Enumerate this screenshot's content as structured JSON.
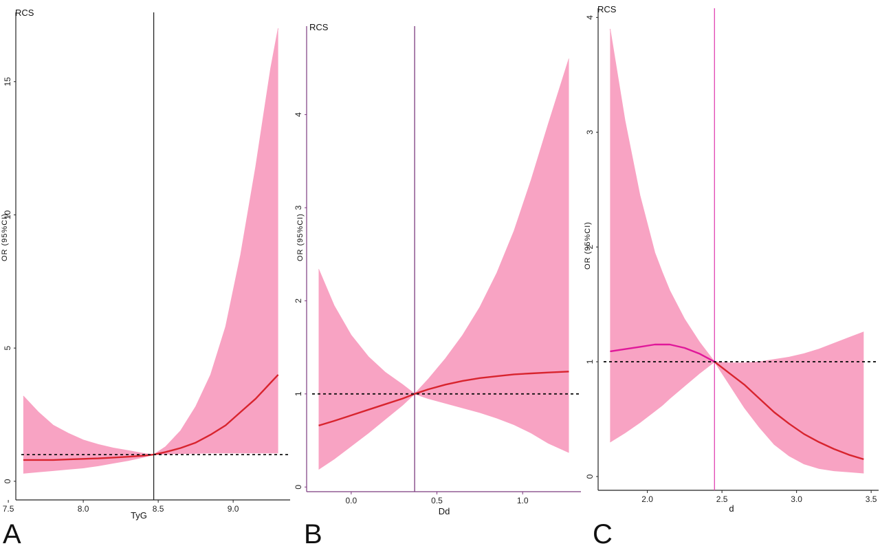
{
  "chart_data": [
    {
      "type": "line",
      "panel_label": "A",
      "corner_label": "RCS",
      "xlabel": "TyG",
      "ylabel": "OR (95%CI)",
      "xlim": [
        7.55,
        9.38
      ],
      "ylim": [
        -0.7,
        17.6
      ],
      "xticks": [
        7.5,
        8.0,
        8.5,
        9.0
      ],
      "yticks": [
        0,
        5,
        10,
        15
      ],
      "reference_x": 8.47,
      "reference_y": 1,
      "axis_color": "#222222",
      "vline_color": "#222222",
      "band_color": "#f8a3c3",
      "line_colors": [
        "#d8242e",
        "#d8242e"
      ],
      "series": [
        {
          "name": "OR",
          "x": [
            7.6,
            7.7,
            7.8,
            7.9,
            8.0,
            8.1,
            8.2,
            8.3,
            8.4,
            8.47,
            8.55,
            8.65,
            8.75,
            8.85,
            8.95,
            9.05,
            9.15,
            9.25,
            9.3
          ],
          "values": [
            0.8,
            0.8,
            0.8,
            0.82,
            0.84,
            0.86,
            0.89,
            0.92,
            0.96,
            1.0,
            1.1,
            1.25,
            1.45,
            1.75,
            2.1,
            2.6,
            3.1,
            3.7,
            4.0
          ]
        },
        {
          "name": "Lower 95% CI",
          "x": [
            7.6,
            7.7,
            7.8,
            7.9,
            8.0,
            8.1,
            8.2,
            8.3,
            8.4,
            8.47,
            8.55,
            8.65,
            8.75,
            8.85,
            8.95,
            9.05,
            9.15,
            9.25,
            9.3
          ],
          "values": [
            0.3,
            0.35,
            0.4,
            0.45,
            0.5,
            0.58,
            0.68,
            0.78,
            0.9,
            1.0,
            1.02,
            1.04,
            1.05,
            1.06,
            1.06,
            1.06,
            1.06,
            1.06,
            1.06
          ]
        },
        {
          "name": "Upper 95% CI",
          "x": [
            7.6,
            7.7,
            7.8,
            7.9,
            8.0,
            8.1,
            8.2,
            8.3,
            8.4,
            8.47,
            8.55,
            8.65,
            8.75,
            8.85,
            8.95,
            9.05,
            9.15,
            9.25,
            9.3
          ],
          "values": [
            3.2,
            2.6,
            2.1,
            1.8,
            1.55,
            1.38,
            1.25,
            1.15,
            1.05,
            1.0,
            1.3,
            1.9,
            2.8,
            4.0,
            5.8,
            8.5,
            11.8,
            15.5,
            17.0
          ]
        }
      ]
    },
    {
      "type": "line",
      "panel_label": "B",
      "corner_label": "RCS",
      "xlabel": "Dd",
      "ylabel": "OR (95%CI)",
      "xlim": [
        -0.26,
        1.34
      ],
      "ylim": [
        -0.05,
        4.95
      ],
      "xticks": [
        0.0,
        0.5,
        1.0
      ],
      "yticks": [
        0,
        1,
        2,
        3,
        4
      ],
      "reference_x": 0.37,
      "reference_y": 1,
      "axis_color": "#7b3a7e",
      "vline_color": "#7b3a7e",
      "band_color": "#f8a3c3",
      "line_colors": [
        "#d8242e",
        "#d8242e"
      ],
      "series": [
        {
          "name": "OR",
          "x": [
            -0.19,
            -0.1,
            0.0,
            0.1,
            0.2,
            0.3,
            0.37,
            0.45,
            0.55,
            0.65,
            0.75,
            0.85,
            0.95,
            1.05,
            1.15,
            1.27
          ],
          "values": [
            0.66,
            0.71,
            0.77,
            0.83,
            0.89,
            0.95,
            1.0,
            1.05,
            1.1,
            1.14,
            1.17,
            1.19,
            1.21,
            1.22,
            1.23,
            1.24
          ]
        },
        {
          "name": "Lower 95% CI",
          "x": [
            -0.19,
            -0.1,
            0.0,
            0.1,
            0.2,
            0.3,
            0.37,
            0.45,
            0.55,
            0.65,
            0.75,
            0.85,
            0.95,
            1.05,
            1.15,
            1.27
          ],
          "values": [
            0.19,
            0.3,
            0.44,
            0.58,
            0.73,
            0.88,
            1.0,
            0.95,
            0.9,
            0.85,
            0.8,
            0.74,
            0.67,
            0.58,
            0.47,
            0.37
          ]
        },
        {
          "name": "Upper 95% CI",
          "x": [
            -0.19,
            -0.1,
            0.0,
            0.1,
            0.2,
            0.3,
            0.37,
            0.45,
            0.55,
            0.65,
            0.75,
            0.85,
            0.95,
            1.05,
            1.15,
            1.27
          ],
          "values": [
            2.34,
            1.95,
            1.63,
            1.4,
            1.23,
            1.1,
            1.0,
            1.16,
            1.38,
            1.63,
            1.93,
            2.3,
            2.75,
            3.3,
            3.9,
            4.6
          ]
        }
      ]
    },
    {
      "type": "line",
      "panel_label": "C",
      "corner_label": "RCS",
      "xlabel": "d",
      "ylabel": "OR (95%CI)",
      "xlim": [
        1.67,
        3.55
      ],
      "ylim": [
        -0.12,
        4.08
      ],
      "xticks": [
        2.0,
        2.5,
        3.0,
        3.5
      ],
      "yticks": [
        0,
        1,
        2,
        3,
        4
      ],
      "reference_x": 2.45,
      "reference_y": 1,
      "axis_color": "#222222",
      "vline_color": "#e040b0",
      "band_color": "#f8a3c3",
      "line_colors": [
        "#e0189a",
        "#d8242e"
      ],
      "series": [
        {
          "name": "OR",
          "x": [
            1.75,
            1.85,
            1.95,
            2.05,
            2.1,
            2.15,
            2.25,
            2.35,
            2.45,
            2.55,
            2.65,
            2.75,
            2.85,
            2.95,
            3.05,
            3.15,
            3.25,
            3.35,
            3.45
          ],
          "values": [
            1.09,
            1.11,
            1.13,
            1.15,
            1.15,
            1.15,
            1.12,
            1.07,
            1.0,
            0.9,
            0.8,
            0.68,
            0.56,
            0.46,
            0.37,
            0.3,
            0.24,
            0.19,
            0.15
          ]
        },
        {
          "name": "Lower 95% CI",
          "x": [
            1.75,
            1.85,
            1.95,
            2.05,
            2.1,
            2.15,
            2.25,
            2.35,
            2.45,
            2.55,
            2.65,
            2.75,
            2.85,
            2.95,
            3.05,
            3.15,
            3.25,
            3.35,
            3.45
          ],
          "values": [
            0.3,
            0.38,
            0.47,
            0.57,
            0.62,
            0.68,
            0.79,
            0.9,
            1.0,
            0.8,
            0.6,
            0.43,
            0.28,
            0.18,
            0.11,
            0.07,
            0.05,
            0.04,
            0.03
          ]
        },
        {
          "name": "Upper 95% CI",
          "x": [
            1.75,
            1.85,
            1.95,
            2.05,
            2.1,
            2.15,
            2.25,
            2.35,
            2.45,
            2.55,
            2.65,
            2.75,
            2.85,
            2.95,
            3.05,
            3.15,
            3.25,
            3.35,
            3.45
          ],
          "values": [
            3.9,
            3.1,
            2.45,
            1.95,
            1.78,
            1.62,
            1.37,
            1.17,
            1.0,
            0.99,
            0.99,
            1.0,
            1.02,
            1.04,
            1.07,
            1.11,
            1.16,
            1.21,
            1.26
          ]
        }
      ]
    }
  ]
}
